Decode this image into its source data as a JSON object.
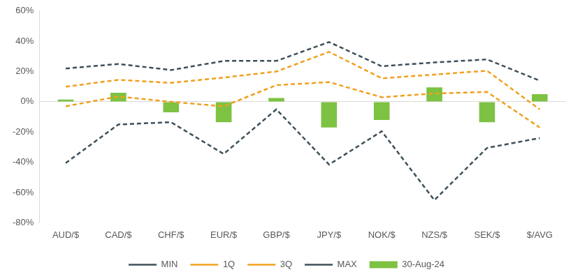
{
  "chart_data": {
    "type": "bar",
    "categories": [
      "AUD/$",
      "CAD/$",
      "CHF/$",
      "EUR/$",
      "GBP/$",
      "JPY/$",
      "NOK/$",
      "NZS/$",
      "SEK/$",
      "$/AVG"
    ],
    "series": [
      {
        "name": "30-Aug-24",
        "type": "bar",
        "color": "#7dc242",
        "values": [
          1.5,
          6,
          -7,
          -13.5,
          2.5,
          -17,
          -12,
          9.5,
          -13.5,
          5
        ]
      },
      {
        "name": "MIN",
        "type": "line",
        "color": "#3d4f5a",
        "line_style": "dashed",
        "values": [
          -40.5,
          -15,
          -13.5,
          -34.5,
          -5,
          -41.5,
          -19.5,
          -65,
          -30.5,
          -24
        ]
      },
      {
        "name": "1Q",
        "type": "line",
        "color": "#f0a01e",
        "line_style": "dashed",
        "values": [
          -3,
          3.5,
          0,
          -3,
          11,
          13,
          3,
          5.5,
          6.5,
          -17
        ]
      },
      {
        "name": "3Q",
        "type": "line",
        "color": "#f0a01e",
        "line_style": "dashed",
        "values": [
          10,
          14.5,
          12.5,
          16,
          20,
          33,
          15.5,
          18,
          20.5,
          -5
        ]
      },
      {
        "name": "MAX",
        "type": "line",
        "color": "#3d4f5a",
        "line_style": "dashed",
        "values": [
          22,
          25,
          21,
          27,
          27,
          39.5,
          23.5,
          26,
          28,
          14
        ]
      }
    ],
    "ylim": [
      -80,
      60
    ],
    "yticks": [
      {
        "value": -80,
        "label": "-80%"
      },
      {
        "value": -60,
        "label": "-60%"
      },
      {
        "value": -40,
        "label": "-40%"
      },
      {
        "value": -20,
        "label": "-20%"
      },
      {
        "value": 0,
        "label": "0%"
      },
      {
        "value": 20,
        "label": "20%"
      },
      {
        "value": 40,
        "label": "40%"
      },
      {
        "value": 60,
        "label": "60%"
      }
    ],
    "grid": false,
    "legend": "bottom",
    "data_labels": false
  }
}
